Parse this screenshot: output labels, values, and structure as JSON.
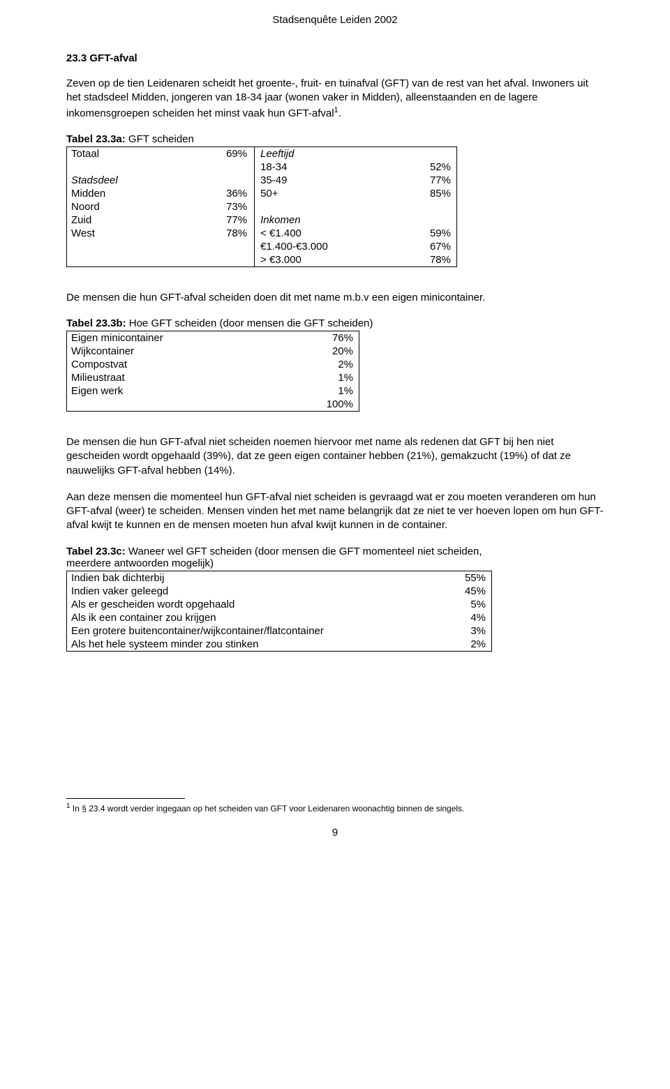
{
  "header": "Stadsenquête Leiden 2002",
  "section_heading": "23.3 GFT-afval",
  "para1": "Zeven op de tien Leidenaren scheidt het groente-, fruit- en tuinafval (GFT) van de rest van het afval. Inwoners uit het stadsdeel Midden, jongeren van 18-34 jaar (wonen vaker in Midden), alleenstaanden en de lagere inkomensgroepen scheiden het minst vaak hun GFT-afval",
  "para1_sup": "1",
  "para1_tail": ".",
  "t3a": {
    "caption_bold": "Tabel 23.3a:",
    "caption_rest": " GFT scheiden",
    "rows_left": [
      [
        "Totaal",
        "69%"
      ],
      [
        "",
        ""
      ],
      [
        "Stadsdeel",
        ""
      ],
      [
        "Midden",
        "36%"
      ],
      [
        "Noord",
        "73%"
      ],
      [
        "Zuid",
        "77%"
      ],
      [
        "West",
        "78%"
      ]
    ],
    "italic_left_rows": [
      2
    ],
    "rows_right": [
      [
        "Leeftijd",
        ""
      ],
      [
        "18-34",
        "52%"
      ],
      [
        "35-49",
        "77%"
      ],
      [
        "50+",
        "85%"
      ],
      [
        "",
        ""
      ],
      [
        "Inkomen",
        ""
      ],
      [
        "< €1.400",
        "59%"
      ],
      [
        "€1.400-€3.000",
        "67%"
      ],
      [
        "> €3.000",
        "78%"
      ]
    ],
    "italic_right_rows": [
      0,
      5
    ]
  },
  "para2": "De mensen die hun GFT-afval scheiden doen dit met name m.b.v een eigen minicontainer.",
  "t3b": {
    "caption_bold": "Tabel 23.3b:",
    "caption_rest": " Hoe GFT scheiden (door mensen die GFT scheiden)",
    "rows": [
      [
        "Eigen minicontainer",
        "76%"
      ],
      [
        "Wijkcontainer",
        "20%"
      ],
      [
        "Compostvat",
        "2%"
      ],
      [
        "Milieustraat",
        "1%"
      ],
      [
        "Eigen werk",
        "1%"
      ],
      [
        "",
        "100%"
      ]
    ]
  },
  "para3": "De mensen die hun GFT-afval niet scheiden noemen hiervoor met name als redenen dat GFT bij hen niet gescheiden wordt opgehaald (39%), dat ze geen eigen container hebben (21%), gemakzucht (19%) of dat ze nauwelijks GFT-afval hebben (14%).",
  "para4": "Aan deze mensen die momenteel hun GFT-afval niet scheiden is gevraagd wat er zou moeten veranderen om hun GFT-afval (weer) te scheiden. Mensen vinden het met name belangrijk dat ze niet te ver hoeven lopen om hun GFT-afval kwijt te kunnen en de mensen moeten hun afval kwijt kunnen in de container.",
  "t3c": {
    "caption_bold": "Tabel 23.3c:",
    "caption_rest": " Waneer wel GFT scheiden (door mensen die GFT momenteel niet scheiden, meerdere antwoorden mogelijk)",
    "rows": [
      [
        "Indien bak dichterbij",
        "55%"
      ],
      [
        "Indien vaker geleegd",
        "45%"
      ],
      [
        "Als er gescheiden wordt opgehaald",
        "5%"
      ],
      [
        "Als ik een container zou krijgen",
        "4%"
      ],
      [
        "Een grotere buitencontainer/wijkcontainer/flatcontainer",
        "3%"
      ],
      [
        "Als het hele systeem minder zou stinken",
        "2%"
      ]
    ]
  },
  "footnote_sup": "1",
  "footnote_text": " In § 23.4 wordt verder ingegaan op het scheiden van GFT voor Leidenaren woonachtig binnen de singels.",
  "page_number": "9"
}
